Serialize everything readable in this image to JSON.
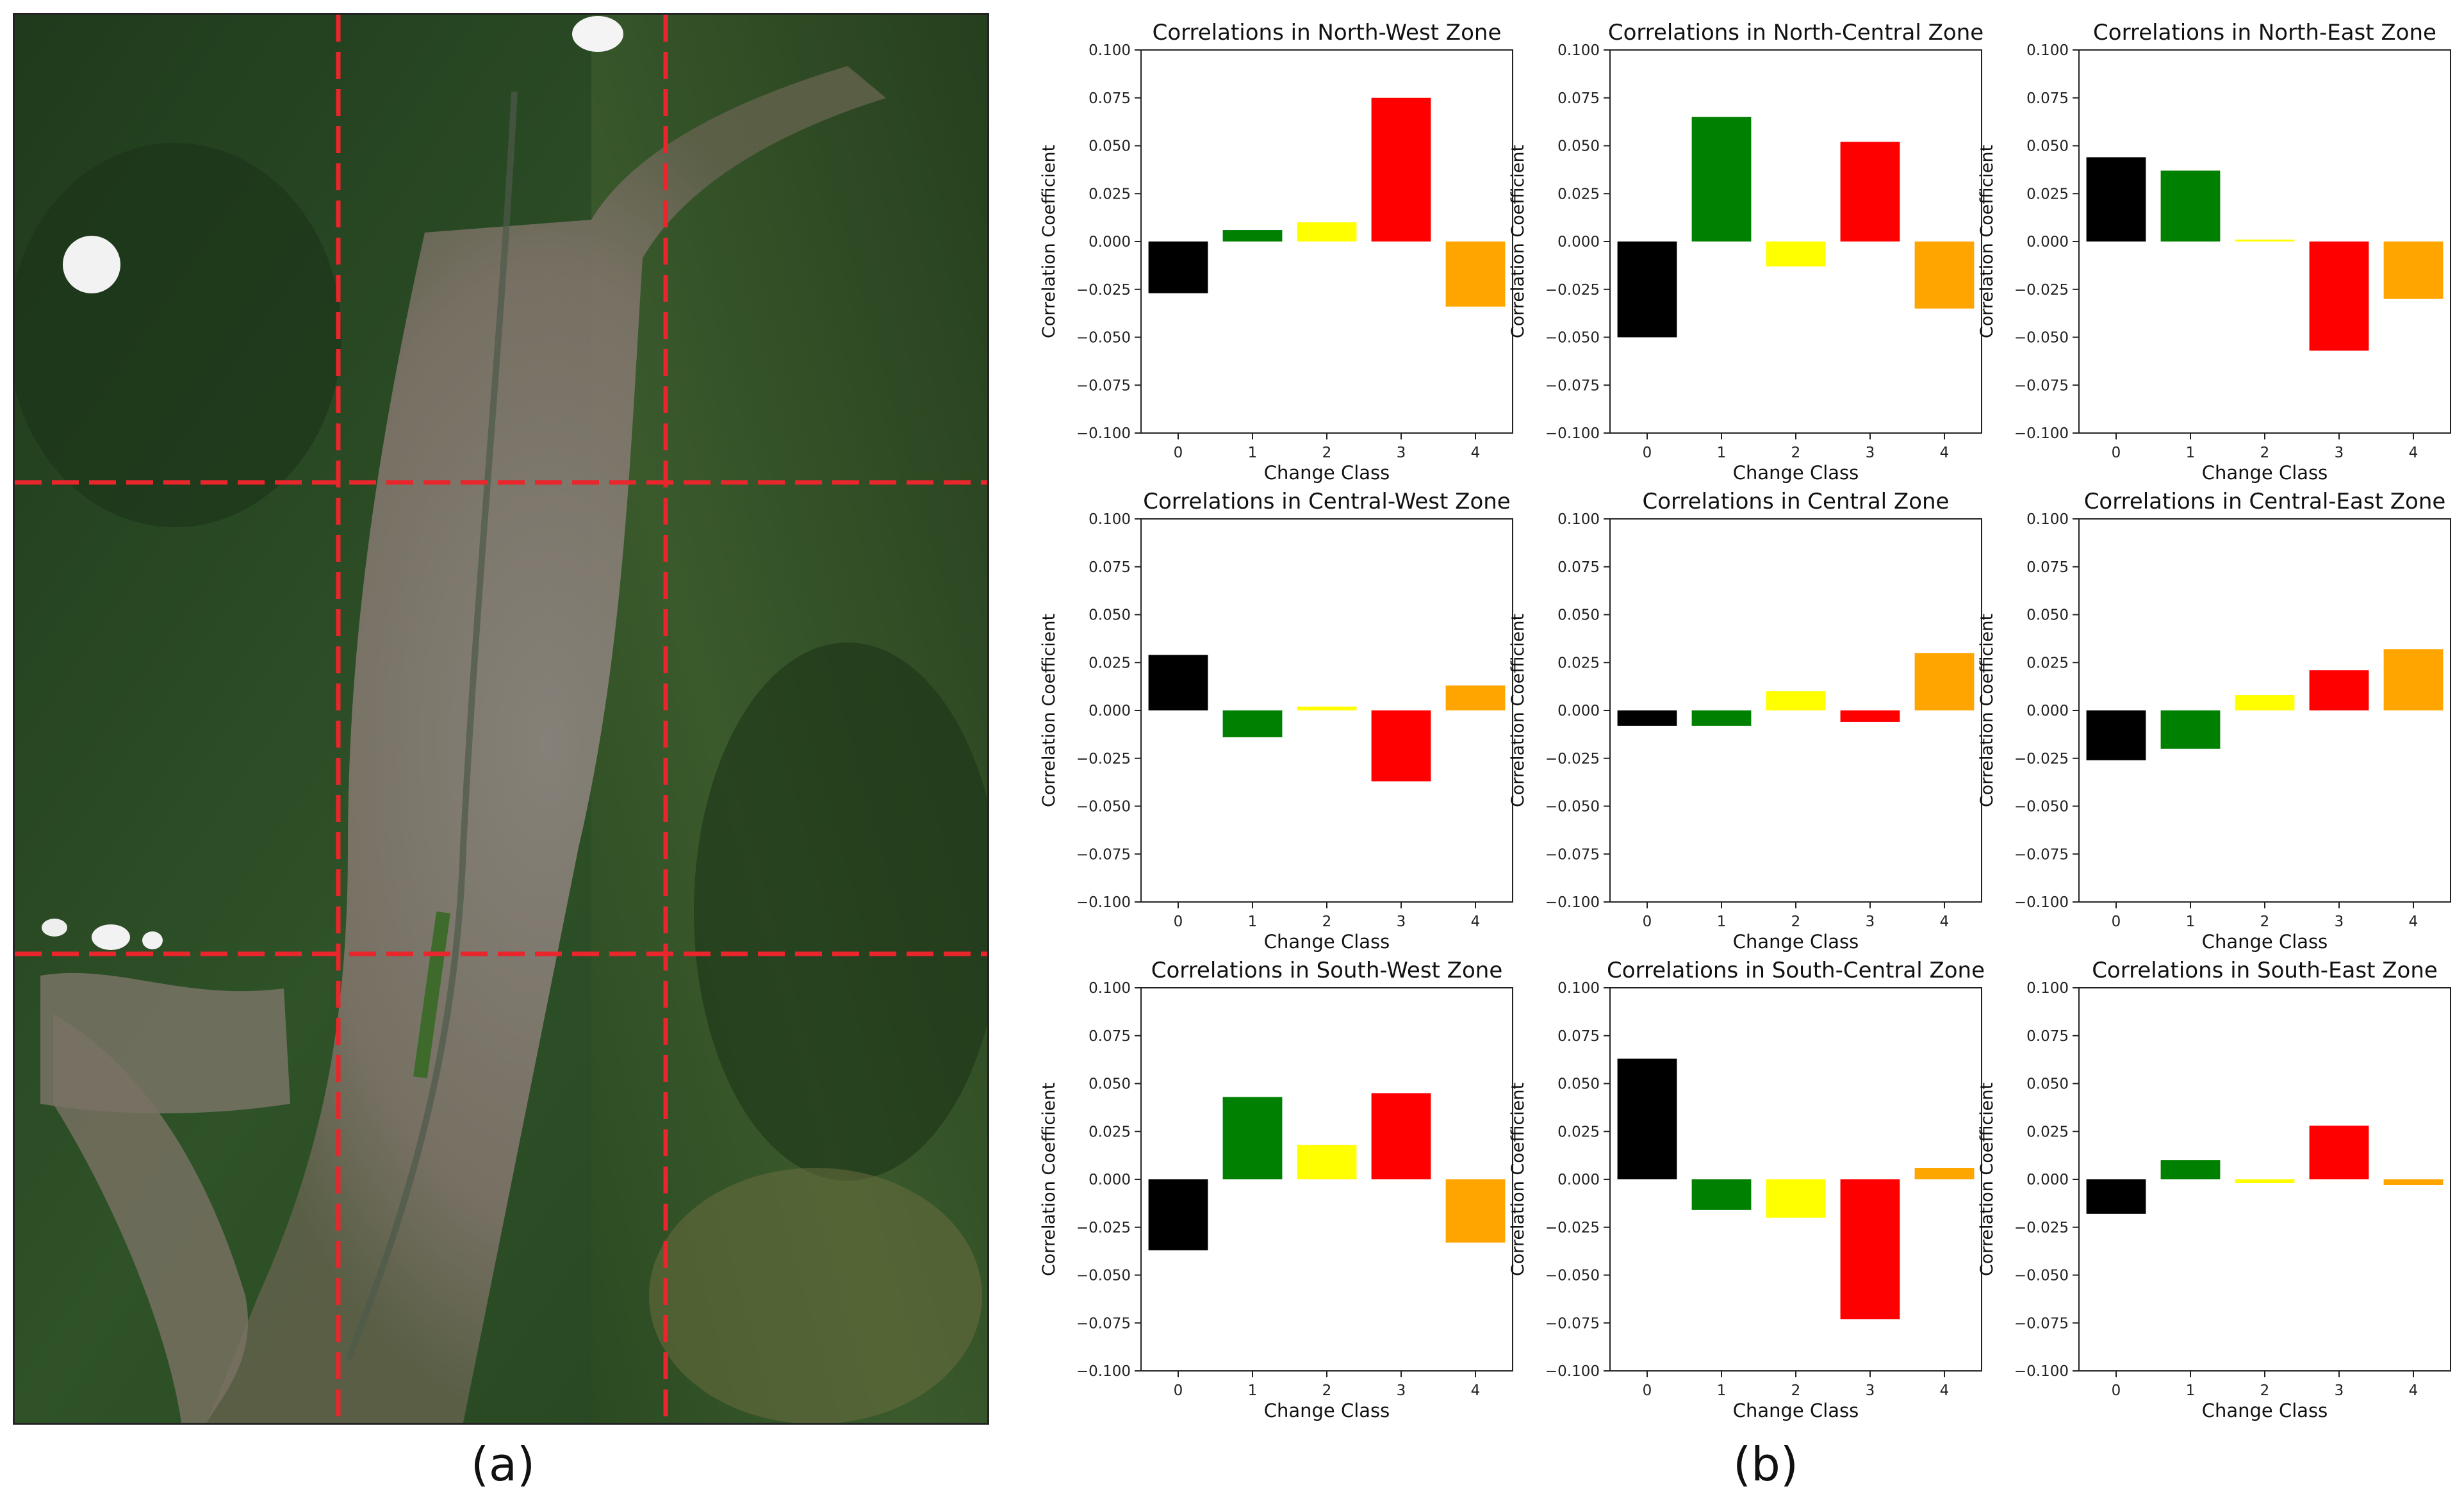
{
  "panels": {
    "left_label": "(a)",
    "right_label": "(b)"
  },
  "colors": {
    "class_0": "#000000",
    "class_1": "#008000",
    "class_2": "#ffff00",
    "class_3": "#ff0000",
    "class_4": "#ffa500",
    "grid_line": "#e8262b"
  },
  "chart_data": [
    {
      "type": "bar",
      "title": "Correlations in North-West Zone",
      "xlabel": "Change Class",
      "ylabel": "Correlation Coefficient",
      "categories": [
        "0",
        "1",
        "2",
        "3",
        "4"
      ],
      "values": [
        -0.027,
        0.006,
        0.01,
        0.075,
        -0.034
      ],
      "ylim": [
        -0.1,
        0.1
      ],
      "yticks": [
        "0.100",
        "0.075",
        "0.050",
        "0.025",
        "0.000",
        "−0.025",
        "−0.050",
        "−0.075",
        "−0.100"
      ]
    },
    {
      "type": "bar",
      "title": "Correlations in North-Central Zone",
      "xlabel": "Change Class",
      "ylabel": "Correlation Coefficient",
      "categories": [
        "0",
        "1",
        "2",
        "3",
        "4"
      ],
      "values": [
        -0.05,
        0.065,
        -0.013,
        0.052,
        -0.035
      ],
      "ylim": [
        -0.1,
        0.1
      ],
      "yticks": [
        "0.100",
        "0.075",
        "0.050",
        "0.025",
        "0.000",
        "−0.025",
        "−0.050",
        "−0.075",
        "−0.100"
      ]
    },
    {
      "type": "bar",
      "title": "Correlations in North-East Zone",
      "xlabel": "Change Class",
      "ylabel": "Correlation Coefficient",
      "categories": [
        "0",
        "1",
        "2",
        "3",
        "4"
      ],
      "values": [
        0.044,
        0.037,
        0.001,
        -0.057,
        -0.03
      ],
      "ylim": [
        -0.1,
        0.1
      ],
      "yticks": [
        "0.100",
        "0.075",
        "0.050",
        "0.025",
        "0.000",
        "−0.025",
        "−0.050",
        "−0.075",
        "−0.100"
      ]
    },
    {
      "type": "bar",
      "title": "Correlations in Central-West Zone",
      "xlabel": "Change Class",
      "ylabel": "Correlation Coefficient",
      "categories": [
        "0",
        "1",
        "2",
        "3",
        "4"
      ],
      "values": [
        0.029,
        -0.014,
        0.002,
        -0.037,
        0.013
      ],
      "ylim": [
        -0.1,
        0.1
      ],
      "yticks": [
        "0.100",
        "0.075",
        "0.050",
        "0.025",
        "0.000",
        "−0.025",
        "−0.050",
        "−0.075",
        "−0.100"
      ]
    },
    {
      "type": "bar",
      "title": "Correlations in Central Zone",
      "xlabel": "Change Class",
      "ylabel": "Correlation Coefficient",
      "categories": [
        "0",
        "1",
        "2",
        "3",
        "4"
      ],
      "values": [
        -0.008,
        -0.008,
        0.01,
        -0.006,
        0.03
      ],
      "ylim": [
        -0.1,
        0.1
      ],
      "yticks": [
        "0.100",
        "0.075",
        "0.050",
        "0.025",
        "0.000",
        "−0.025",
        "−0.050",
        "−0.075",
        "−0.100"
      ]
    },
    {
      "type": "bar",
      "title": "Correlations in Central-East Zone",
      "xlabel": "Change Class",
      "ylabel": "Correlation Coefficient",
      "categories": [
        "0",
        "1",
        "2",
        "3",
        "4"
      ],
      "values": [
        -0.026,
        -0.02,
        0.008,
        0.021,
        0.032
      ],
      "ylim": [
        -0.1,
        0.1
      ],
      "yticks": [
        "0.100",
        "0.075",
        "0.050",
        "0.025",
        "0.000",
        "−0.025",
        "−0.050",
        "−0.075",
        "−0.100"
      ]
    },
    {
      "type": "bar",
      "title": "Correlations in South-West Zone",
      "xlabel": "Change Class",
      "ylabel": "Correlation Coefficient",
      "categories": [
        "0",
        "1",
        "2",
        "3",
        "4"
      ],
      "values": [
        -0.037,
        0.043,
        0.018,
        0.045,
        -0.033
      ],
      "ylim": [
        -0.1,
        0.1
      ],
      "yticks": [
        "0.100",
        "0.075",
        "0.050",
        "0.025",
        "0.000",
        "−0.025",
        "−0.050",
        "−0.075",
        "−0.100"
      ]
    },
    {
      "type": "bar",
      "title": "Correlations in South-Central Zone",
      "xlabel": "Change Class",
      "ylabel": "Correlation Coefficient",
      "categories": [
        "0",
        "1",
        "2",
        "3",
        "4"
      ],
      "values": [
        0.063,
        -0.016,
        -0.02,
        -0.073,
        0.006
      ],
      "ylim": [
        -0.1,
        0.1
      ],
      "yticks": [
        "0.100",
        "0.075",
        "0.050",
        "0.025",
        "0.000",
        "−0.025",
        "−0.050",
        "−0.075",
        "−0.100"
      ]
    },
    {
      "type": "bar",
      "title": "Correlations in South-East Zone",
      "xlabel": "Change Class",
      "ylabel": "Correlation Coefficient",
      "categories": [
        "0",
        "1",
        "2",
        "3",
        "4"
      ],
      "values": [
        -0.018,
        0.01,
        -0.002,
        0.028,
        -0.003
      ],
      "ylim": [
        -0.1,
        0.1
      ],
      "yticks": [
        "0.100",
        "0.075",
        "0.050",
        "0.025",
        "0.000",
        "−0.025",
        "−0.050",
        "−0.075",
        "−0.100"
      ]
    }
  ]
}
